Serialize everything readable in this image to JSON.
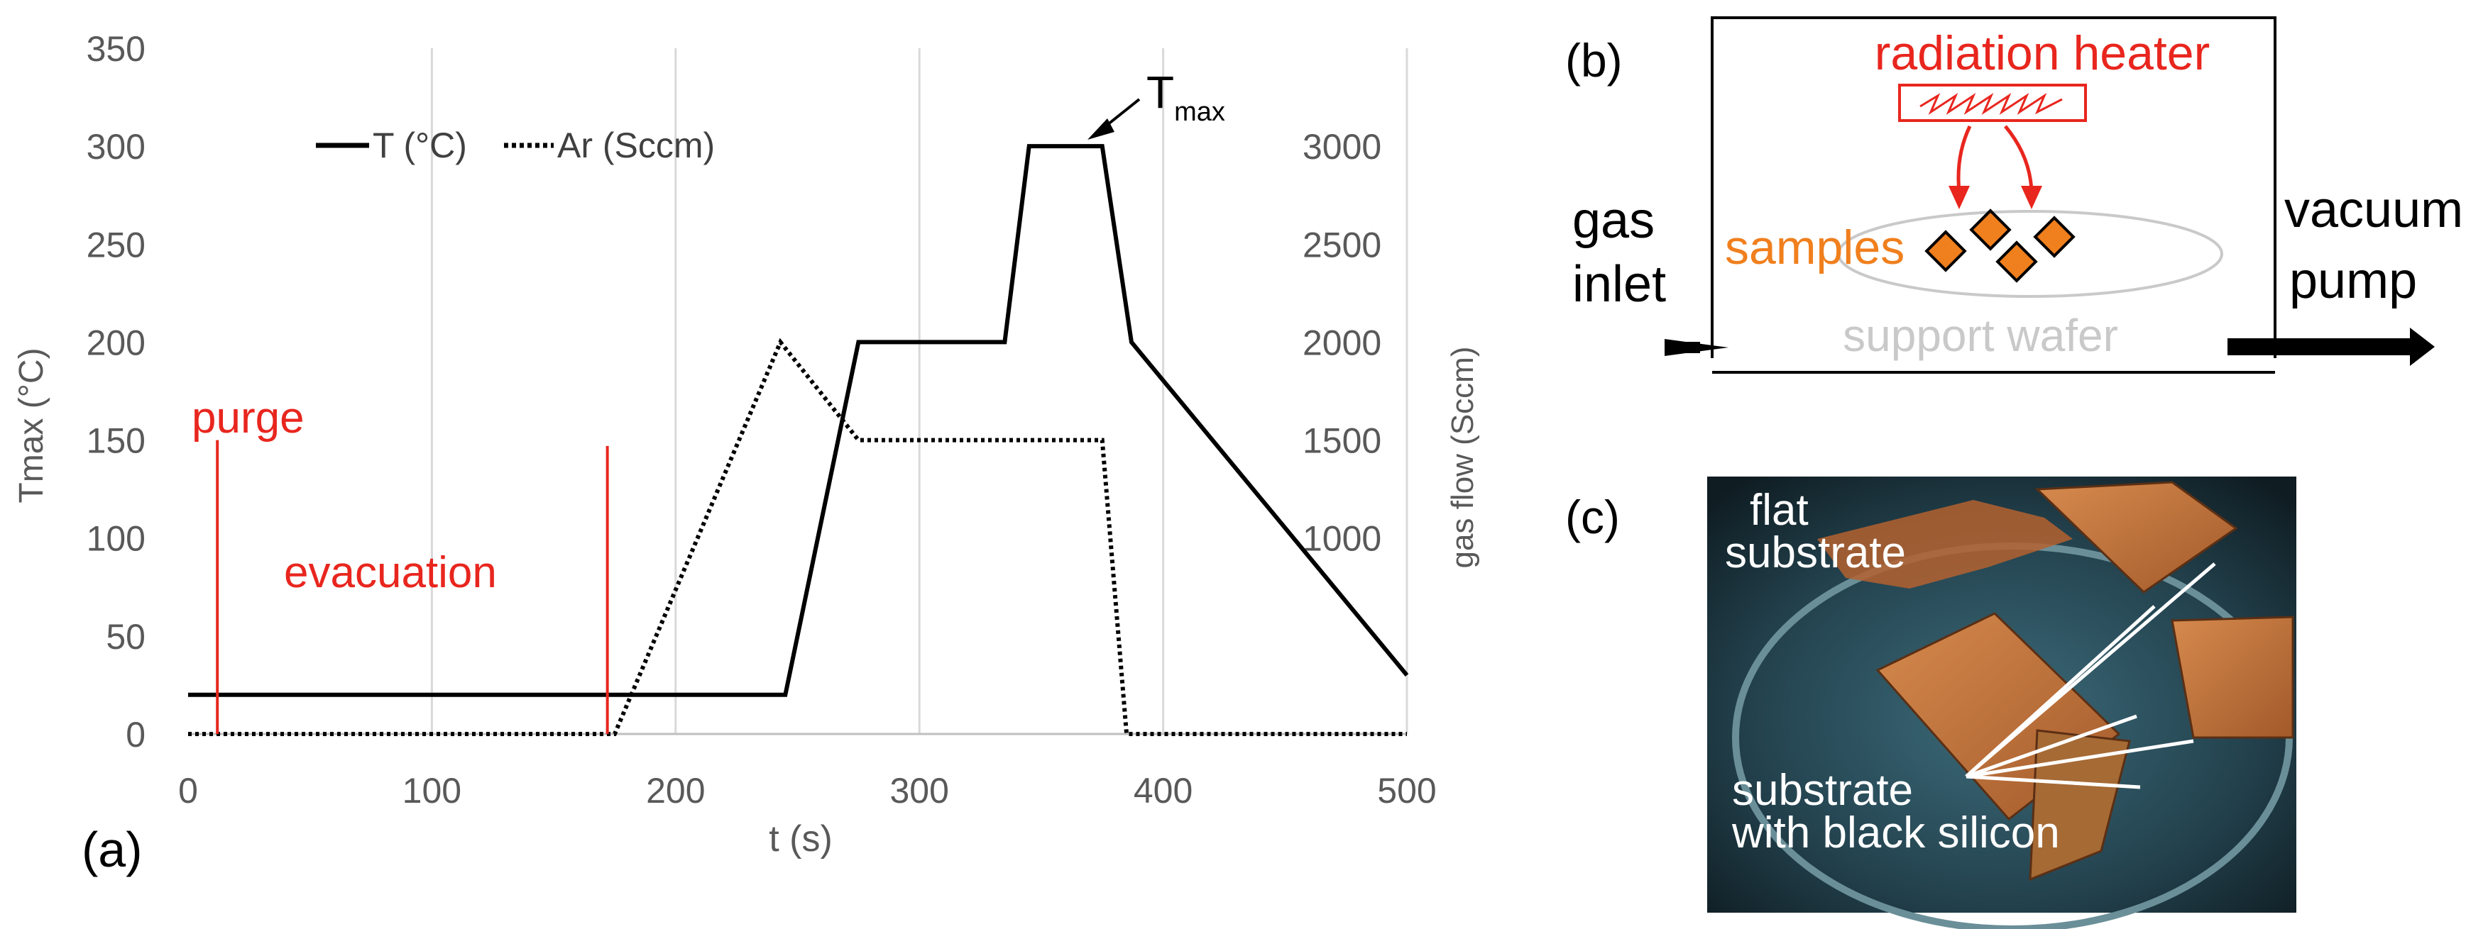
{
  "chart_data": {
    "type": "line",
    "panel_label": "(a)",
    "xlabel": "t (s)",
    "ylabel": "Tmax  (°C)",
    "y2label": "gas flow  (Sccm)",
    "xlim": [
      0,
      500
    ],
    "ylim": [
      0,
      350
    ],
    "y2lim": [
      0,
      3500
    ],
    "x_ticks": [
      0,
      100,
      200,
      300,
      400,
      500
    ],
    "y_ticks": [
      0,
      50,
      100,
      150,
      200,
      250,
      300,
      350
    ],
    "y2_ticks": [
      1000,
      1500,
      2000,
      2500,
      3000
    ],
    "grid": "vertical",
    "legend_position": "top",
    "series": [
      {
        "name": "T (°C)",
        "axis": "left",
        "style": "solid",
        "x": [
          0,
          245,
          275,
          335,
          345,
          375,
          387,
          500
        ],
        "y": [
          20,
          20,
          200,
          200,
          300,
          300,
          200,
          30
        ]
      },
      {
        "name": "Ar (Sccm)",
        "axis": "right",
        "style": "dotted",
        "x": [
          0,
          175,
          243,
          275,
          375,
          385,
          500
        ],
        "y": [
          0,
          0,
          2000,
          1500,
          1500,
          0,
          0
        ]
      }
    ],
    "annotations": {
      "tmax_label": "T",
      "tmax_sub": "max",
      "purge": "purge",
      "evacuation": "evacuation",
      "purge_line_x": [
        12,
        172
      ]
    }
  },
  "panel_b": {
    "label": "(b)",
    "heater": "radiation heater",
    "samples": "samples",
    "support": "support wafer",
    "gas_inlet": [
      "gas",
      "inlet"
    ],
    "vacuum_pump": [
      "vacuum",
      "pump"
    ]
  },
  "panel_c": {
    "label": "(c)",
    "flat_substrate": [
      "flat",
      "substrate"
    ],
    "black_silicon": [
      "substrate",
      "with black silicon"
    ]
  },
  "colors": {
    "axis_text": "#595959",
    "red": "#e8261e",
    "orange": "#f07f1d",
    "support_gray": "#c9c9c9",
    "grid": "#d9d9d9"
  }
}
